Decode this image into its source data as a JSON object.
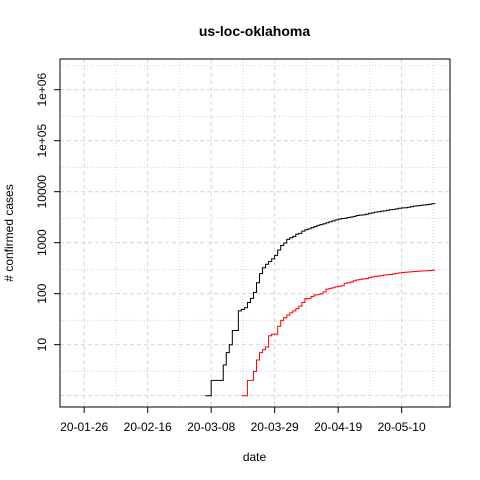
{
  "chart_data": {
    "type": "line",
    "title": "us-loc-oklahoma",
    "xlabel": "date",
    "ylabel": "# confirmed cases",
    "y_scale": "log",
    "grid": true,
    "x_ticks": [
      "20-01-26",
      "20-02-16",
      "20-03-08",
      "20-03-29",
      "20-04-19",
      "20-05-10"
    ],
    "y_ticks": [
      {
        "value": 10,
        "label": "10"
      },
      {
        "value": 100,
        "label": "100"
      },
      {
        "value": 1000,
        "label": "1000"
      },
      {
        "value": 10000,
        "label": "10000"
      },
      {
        "value": 100000,
        "label": "1e+05"
      },
      {
        "value": 1000000,
        "label": "1e+06"
      }
    ],
    "xlim": [
      "2020-01-18",
      "2020-05-26"
    ],
    "ylim": [
      0.6,
      4000000
    ],
    "series": [
      {
        "color": "#000000",
        "points": [
          [
            "2020-03-06",
            1
          ],
          [
            "2020-03-07",
            1
          ],
          [
            "2020-03-08",
            2
          ],
          [
            "2020-03-09",
            2
          ],
          [
            "2020-03-10",
            2
          ],
          [
            "2020-03-11",
            2
          ],
          [
            "2020-03-12",
            4
          ],
          [
            "2020-03-13",
            7
          ],
          [
            "2020-03-14",
            10
          ],
          [
            "2020-03-15",
            19
          ],
          [
            "2020-03-16",
            19
          ],
          [
            "2020-03-17",
            46
          ],
          [
            "2020-03-18",
            49
          ],
          [
            "2020-03-19",
            53
          ],
          [
            "2020-03-20",
            67
          ],
          [
            "2020-03-21",
            81
          ],
          [
            "2020-03-22",
            106
          ],
          [
            "2020-03-23",
            164
          ],
          [
            "2020-03-24",
            248
          ],
          [
            "2020-03-25",
            322
          ],
          [
            "2020-03-26",
            377
          ],
          [
            "2020-03-27",
            429
          ],
          [
            "2020-03-28",
            481
          ],
          [
            "2020-03-29",
            565
          ],
          [
            "2020-03-30",
            719
          ],
          [
            "2020-03-31",
            879
          ],
          [
            "2020-04-01",
            988
          ],
          [
            "2020-04-02",
            1159
          ],
          [
            "2020-04-03",
            1252
          ],
          [
            "2020-04-04",
            1327
          ],
          [
            "2020-04-05",
            1472
          ],
          [
            "2020-04-06",
            1524
          ],
          [
            "2020-04-07",
            1684
          ],
          [
            "2020-04-08",
            1794
          ],
          [
            "2020-04-09",
            1868
          ],
          [
            "2020-04-10",
            1970
          ],
          [
            "2020-04-11",
            2069
          ],
          [
            "2020-04-12",
            2184
          ],
          [
            "2020-04-13",
            2263
          ],
          [
            "2020-04-14",
            2357
          ],
          [
            "2020-04-15",
            2465
          ],
          [
            "2020-04-16",
            2570
          ],
          [
            "2020-04-17",
            2680
          ],
          [
            "2020-04-18",
            2807
          ],
          [
            "2020-04-19",
            2894
          ],
          [
            "2020-04-20",
            2977
          ],
          [
            "2020-04-21",
            3017
          ],
          [
            "2020-04-22",
            3121
          ],
          [
            "2020-04-23",
            3193
          ],
          [
            "2020-04-24",
            3280
          ],
          [
            "2020-04-25",
            3410
          ],
          [
            "2020-04-26",
            3473
          ],
          [
            "2020-04-27",
            3509
          ],
          [
            "2020-04-28",
            3618
          ],
          [
            "2020-04-29",
            3748
          ],
          [
            "2020-04-30",
            3851
          ],
          [
            "2020-05-01",
            3972
          ],
          [
            "2020-05-02",
            4044
          ],
          [
            "2020-05-03",
            4127
          ],
          [
            "2020-05-04",
            4201
          ],
          [
            "2020-05-05",
            4330
          ],
          [
            "2020-05-06",
            4424
          ],
          [
            "2020-05-07",
            4490
          ],
          [
            "2020-05-08",
            4613
          ],
          [
            "2020-05-09",
            4732
          ],
          [
            "2020-05-10",
            4812
          ],
          [
            "2020-05-11",
            4852
          ],
          [
            "2020-05-12",
            4962
          ],
          [
            "2020-05-13",
            5086
          ],
          [
            "2020-05-14",
            5237
          ],
          [
            "2020-05-15",
            5310
          ],
          [
            "2020-05-16",
            5398
          ],
          [
            "2020-05-17",
            5489
          ],
          [
            "2020-05-18",
            5532
          ],
          [
            "2020-05-19",
            5680
          ],
          [
            "2020-05-20",
            5849
          ],
          [
            "2020-05-21",
            5960
          ]
        ]
      },
      {
        "color": "#ff0000",
        "points": [
          [
            "2020-03-18",
            1
          ],
          [
            "2020-03-19",
            1
          ],
          [
            "2020-03-20",
            2
          ],
          [
            "2020-03-21",
            2
          ],
          [
            "2020-03-22",
            3
          ],
          [
            "2020-03-23",
            5
          ],
          [
            "2020-03-24",
            7
          ],
          [
            "2020-03-25",
            8
          ],
          [
            "2020-03-26",
            9
          ],
          [
            "2020-03-27",
            15
          ],
          [
            "2020-03-28",
            16
          ],
          [
            "2020-03-29",
            16
          ],
          [
            "2020-03-30",
            23
          ],
          [
            "2020-03-31",
            30
          ],
          [
            "2020-04-01",
            34
          ],
          [
            "2020-04-02",
            38
          ],
          [
            "2020-04-03",
            42
          ],
          [
            "2020-04-04",
            46
          ],
          [
            "2020-04-05",
            51
          ],
          [
            "2020-04-06",
            57
          ],
          [
            "2020-04-07",
            67
          ],
          [
            "2020-04-08",
            80
          ],
          [
            "2020-04-09",
            80
          ],
          [
            "2020-04-10",
            88
          ],
          [
            "2020-04-11",
            94
          ],
          [
            "2020-04-12",
            96
          ],
          [
            "2020-04-13",
            99
          ],
          [
            "2020-04-14",
            108
          ],
          [
            "2020-04-15",
            123
          ],
          [
            "2020-04-16",
            127
          ],
          [
            "2020-04-17",
            131
          ],
          [
            "2020-04-18",
            136
          ],
          [
            "2020-04-19",
            140
          ],
          [
            "2020-04-20",
            143
          ],
          [
            "2020-04-21",
            160
          ],
          [
            "2020-04-22",
            164
          ],
          [
            "2020-04-23",
            170
          ],
          [
            "2020-04-24",
            179
          ],
          [
            "2020-04-25",
            187
          ],
          [
            "2020-04-26",
            191
          ],
          [
            "2020-04-27",
            195
          ],
          [
            "2020-04-28",
            197
          ],
          [
            "2020-04-29",
            207
          ],
          [
            "2020-04-30",
            213
          ],
          [
            "2020-05-01",
            218
          ],
          [
            "2020-05-02",
            222
          ],
          [
            "2020-05-03",
            226
          ],
          [
            "2020-05-04",
            232
          ],
          [
            "2020-05-05",
            236
          ],
          [
            "2020-05-06",
            238
          ],
          [
            "2020-05-07",
            245
          ],
          [
            "2020-05-08",
            250
          ],
          [
            "2020-05-09",
            256
          ],
          [
            "2020-05-10",
            260
          ],
          [
            "2020-05-11",
            264
          ],
          [
            "2020-05-12",
            266
          ],
          [
            "2020-05-13",
            270
          ],
          [
            "2020-05-14",
            273
          ],
          [
            "2020-05-15",
            276
          ],
          [
            "2020-05-16",
            278
          ],
          [
            "2020-05-17",
            280
          ],
          [
            "2020-05-18",
            282
          ],
          [
            "2020-05-19",
            285
          ],
          [
            "2020-05-20",
            288
          ],
          [
            "2020-05-21",
            290
          ]
        ]
      }
    ]
  }
}
